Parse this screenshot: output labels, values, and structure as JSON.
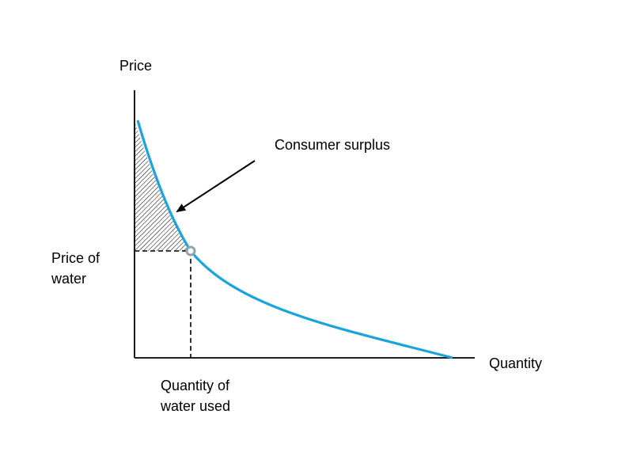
{
  "labels": {
    "y_axis": "Price",
    "x_axis": "Quantity",
    "annotation": "Consumer surplus",
    "price_line1": "Price of",
    "price_line2": "water",
    "qty_line1": "Quantity of",
    "qty_line2": "water used"
  },
  "colors": {
    "curve": "#1aa3dc",
    "axis": "#000000",
    "point_fill": "#ffffff",
    "point_stroke": "#8fa5ad",
    "hatch": "#000000"
  }
}
